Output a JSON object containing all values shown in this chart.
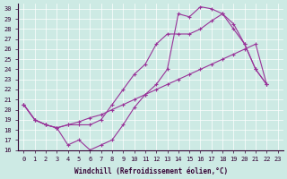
{
  "xlabel": "Windchill (Refroidissement éolien,°C)",
  "background_color": "#cdeae4",
  "line_color": "#993399",
  "xlim": [
    -0.5,
    23.5
  ],
  "ylim": [
    16,
    30.5
  ],
  "xticks": [
    0,
    1,
    2,
    3,
    4,
    5,
    6,
    7,
    8,
    9,
    10,
    11,
    12,
    13,
    14,
    15,
    16,
    17,
    18,
    19,
    20,
    21,
    22,
    23
  ],
  "yticks": [
    16,
    17,
    18,
    19,
    20,
    21,
    22,
    23,
    24,
    25,
    26,
    27,
    28,
    29,
    30
  ],
  "series1_x": [
    0,
    1,
    2,
    3,
    4,
    5,
    6,
    7,
    8,
    9,
    10,
    11,
    12,
    13,
    14,
    15,
    16,
    17,
    18,
    19,
    20,
    21,
    22
  ],
  "series1_y": [
    20.5,
    19.0,
    18.5,
    18.2,
    16.5,
    17.0,
    16.0,
    16.5,
    17.0,
    18.5,
    20.2,
    21.5,
    22.5,
    24.0,
    29.5,
    29.2,
    30.2,
    30.0,
    29.5,
    28.0,
    26.5,
    24.0,
    22.5
  ],
  "series2_x": [
    0,
    1,
    2,
    3,
    4,
    5,
    6,
    7,
    8,
    9,
    10,
    11,
    12,
    13,
    14,
    15,
    16,
    17,
    18,
    19,
    20,
    21,
    22
  ],
  "series2_y": [
    20.5,
    19.0,
    18.5,
    18.2,
    18.5,
    18.5,
    18.5,
    19.0,
    20.5,
    22.0,
    23.5,
    24.5,
    26.5,
    27.5,
    27.5,
    27.5,
    28.0,
    28.8,
    29.5,
    28.5,
    26.5,
    24.0,
    22.5
  ],
  "series3_x": [
    0,
    1,
    2,
    3,
    4,
    5,
    6,
    7,
    8,
    9,
    10,
    11,
    12,
    13,
    14,
    15,
    16,
    17,
    18,
    19,
    20,
    21,
    22
  ],
  "series3_y": [
    20.5,
    19.0,
    18.5,
    18.2,
    18.5,
    18.8,
    19.2,
    19.5,
    20.0,
    20.5,
    21.0,
    21.5,
    22.0,
    22.5,
    23.0,
    23.5,
    24.0,
    24.5,
    25.0,
    25.5,
    26.0,
    26.5,
    22.5
  ]
}
